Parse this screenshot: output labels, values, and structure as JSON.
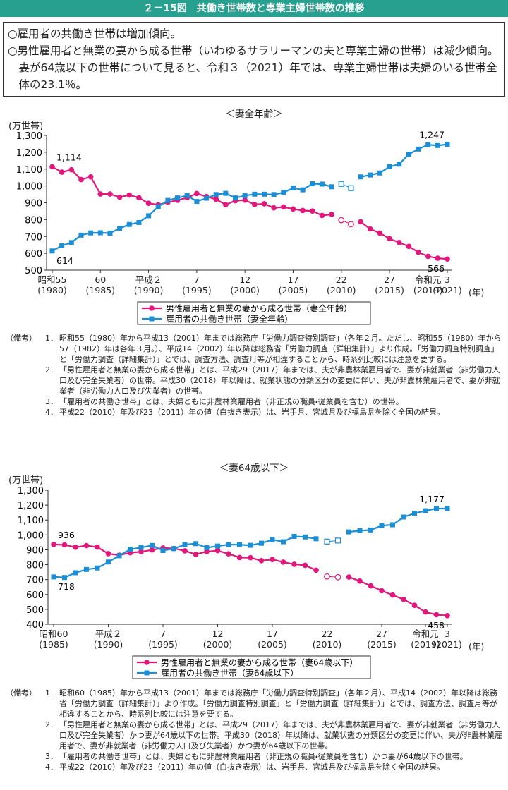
{
  "header": {
    "title": "２－15図　共働き世帯数と専業主婦世帯数の推移"
  },
  "summary": [
    "○雇用者の共働き世帯は増加傾向。",
    "○男性雇用者と無業の妻から成る世帯（いわゆるサラリーマンの夫と専業主婦の世帯）は減少傾向。妻が64歳以下の世帯について見ると、令和３（2021）年では、専業主婦世帯は夫婦のいる世帯全体の23.1％。"
  ],
  "chart_data": [
    {
      "type": "line",
      "subtitle": "＜妻全年齢＞",
      "ylabel": "(万世帯)",
      "xlabel": "(年)",
      "x": [
        1980,
        1981,
        1982,
        1983,
        1984,
        1985,
        1986,
        1987,
        1988,
        1989,
        1990,
        1991,
        1992,
        1993,
        1994,
        1995,
        1996,
        1997,
        1998,
        1999,
        2000,
        2001,
        2002,
        2003,
        2004,
        2005,
        2006,
        2007,
        2008,
        2009,
        2010,
        2011,
        2012,
        2013,
        2014,
        2015,
        2016,
        2017,
        2018,
        2019,
        2020,
        2021
      ],
      "open_x": [
        2010,
        2011
      ],
      "xlim": [
        1980,
        2021
      ],
      "xticks": [
        {
          "value": 1980,
          "label": "昭和55\n(1980)"
        },
        {
          "value": 1985,
          "label": "60\n(1985)"
        },
        {
          "value": 1990,
          "label": "平成２\n(1990)"
        },
        {
          "value": 1995,
          "label": "7\n(1995)"
        },
        {
          "value": 2000,
          "label": "12\n(2000)"
        },
        {
          "value": 2005,
          "label": "17\n(2005)"
        },
        {
          "value": 2010,
          "label": "22\n(2010)"
        },
        {
          "value": 2015,
          "label": "27\n(2015)"
        },
        {
          "value": 2019,
          "label": "令和元\n(2019)"
        },
        {
          "value": 2021,
          "label": "3\n(2021)"
        }
      ],
      "ylim": [
        500,
        1300
      ],
      "yticks": [
        500,
        600,
        700,
        800,
        900,
        {
          "value": 1000,
          "label": "1,000"
        },
        {
          "value": 1100,
          "label": "1,100"
        },
        {
          "value": 1200,
          "label": "1,200"
        },
        {
          "value": 1300,
          "label": "1,300"
        }
      ],
      "grid": false,
      "series": [
        {
          "name": "男性雇用者と無業の妻から成る世帯（妻全年齢）",
          "color": "#e2177b",
          "marker": "circle",
          "values": [
            1114,
            1082,
            1096,
            1038,
            1054,
            952,
            952,
            933,
            946,
            930,
            897,
            888,
            903,
            915,
            930,
            955,
            937,
            921,
            889,
            912,
            916,
            890,
            894,
            870,
            875,
            863,
            854,
            851,
            825,
            831,
            797,
            773,
            787,
            745,
            720,
            687,
            664,
            641,
            606,
            582,
            571,
            566
          ],
          "value_labels": [
            "1,114",
            null,
            null,
            null,
            null,
            null,
            null,
            null,
            null,
            null,
            null,
            null,
            null,
            null,
            null,
            null,
            null,
            null,
            null,
            null,
            null,
            null,
            null,
            null,
            null,
            null,
            null,
            null,
            null,
            null,
            null,
            null,
            null,
            null,
            null,
            null,
            null,
            null,
            null,
            null,
            null,
            "566"
          ]
        },
        {
          "name": "雇用者の共働き世帯（妻全年齢）",
          "color": "#1b8ed6",
          "marker": "square",
          "values": [
            614,
            645,
            664,
            708,
            721,
            722,
            720,
            748,
            771,
            783,
            823,
            877,
            914,
            929,
            943,
            908,
            927,
            949,
            956,
            929,
            942,
            951,
            951,
            949,
            961,
            988,
            977,
            1013,
            1011,
            995,
            1012,
            987,
            1054,
            1065,
            1077,
            1114,
            1129,
            1188,
            1219,
            1245,
            1240,
            1247
          ],
          "value_labels": [
            "614",
            null,
            null,
            null,
            null,
            null,
            null,
            null,
            null,
            null,
            null,
            null,
            null,
            null,
            null,
            null,
            null,
            null,
            null,
            null,
            null,
            null,
            null,
            null,
            null,
            null,
            null,
            null,
            null,
            null,
            null,
            null,
            null,
            null,
            null,
            null,
            null,
            null,
            null,
            null,
            null,
            "1,247"
          ]
        }
      ],
      "notes_label": "（備考）",
      "notes": [
        {
          "number": "1．",
          "text": "昭和55（1980）年から平成13（2001）年までは総務庁「労働力調査特別調査」（各年２月。ただし、昭和55（1980）年から57（1982）年は各年３月。）、平成14（2002）年以降は総務省「労働力調査（詳細集計）」より作成。「労働力調査特別調査」と「労働力調査（詳細集計）」とでは、調査方法、調査月等が相違することから、時系列比較には注意を要する。"
        },
        {
          "number": "2．",
          "text": "「男性雇用者と無業の妻から成る世帯」とは、平成29（2017）年までは、夫が非農林業雇用者で、妻が非就業者（非労働力人口及び完全失業者）の世帯。平成30（2018）年以降は、就業状態の分類区分の変更に伴い、夫が非農林業雇用者で、妻が非就業者（非労働力人口及び失業者）の世帯。"
        },
        {
          "number": "3．",
          "text": "「雇用者の共働き世帯」とは、夫婦ともに非農林業雇用者（非正規の職員・従業員を含む）の世帯。"
        },
        {
          "number": "4．",
          "text": "平成22（2010）年及び23（2011）年の値（白抜き表示）は、岩手県、宮城県及び福島県を除く全国の結果。"
        }
      ]
    },
    {
      "type": "line",
      "subtitle": "＜妻64歳以下＞",
      "ylabel": "(万世帯)",
      "xlabel": "(年)",
      "x": [
        1985,
        1986,
        1987,
        1988,
        1989,
        1990,
        1991,
        1992,
        1993,
        1994,
        1995,
        1996,
        1997,
        1998,
        1999,
        2000,
        2001,
        2002,
        2003,
        2004,
        2005,
        2006,
        2007,
        2008,
        2009,
        2010,
        2011,
        2012,
        2013,
        2014,
        2015,
        2016,
        2017,
        2018,
        2019,
        2020,
        2021
      ],
      "open_x": [
        2010,
        2011
      ],
      "xlim": [
        1985,
        2021
      ],
      "xticks": [
        {
          "value": 1985,
          "label": "昭和60\n(1985)"
        },
        {
          "value": 1990,
          "label": "平成２\n(1990)"
        },
        {
          "value": 1995,
          "label": "7\n(1995)"
        },
        {
          "value": 2000,
          "label": "12\n(2000)"
        },
        {
          "value": 2005,
          "label": "17\n(2005)"
        },
        {
          "value": 2010,
          "label": "22\n(2010)"
        },
        {
          "value": 2015,
          "label": "27\n(2015)"
        },
        {
          "value": 2019,
          "label": "令和元\n(2019)"
        },
        {
          "value": 2021,
          "label": "3\n(2021)"
        }
      ],
      "ylim": [
        400,
        1300
      ],
      "yticks": [
        400,
        500,
        600,
        700,
        800,
        900,
        {
          "value": 1000,
          "label": "1,000"
        },
        {
          "value": 1100,
          "label": "1,100"
        },
        {
          "value": 1200,
          "label": "1,200"
        },
        {
          "value": 1300,
          "label": "1,300"
        }
      ],
      "grid": false,
      "series": [
        {
          "name": "男性雇用者と無業の妻から成る世帯（妻64歳以下）",
          "color": "#e2177b",
          "marker": "circle",
          "values": [
            936,
            933,
            917,
            928,
            918,
            874,
            864,
            880,
            887,
            899,
            912,
            909,
            893,
            869,
            888,
            894,
            873,
            848,
            847,
            827,
            835,
            817,
            803,
            796,
            763,
            721,
            716,
            717,
            690,
            658,
            625,
            596,
            567,
            527,
            482,
            464,
            458
          ],
          "value_labels": [
            "936",
            null,
            null,
            null,
            null,
            null,
            null,
            null,
            null,
            null,
            null,
            null,
            null,
            null,
            null,
            null,
            null,
            null,
            null,
            null,
            null,
            null,
            null,
            null,
            null,
            null,
            null,
            null,
            null,
            null,
            null,
            null,
            null,
            null,
            null,
            null,
            "458"
          ]
        },
        {
          "name": "雇用者の共働き世帯（妻64歳以下）",
          "color": "#1b8ed6",
          "marker": "square",
          "values": [
            718,
            714,
            746,
            768,
            778,
            818,
            860,
            903,
            915,
            929,
            895,
            908,
            935,
            941,
            914,
            925,
            935,
            934,
            930,
            944,
            968,
            954,
            990,
            986,
            974,
            955,
            962,
            1020,
            1028,
            1033,
            1062,
            1068,
            1120,
            1145,
            1162,
            1177,
            1177
          ],
          "value_labels": [
            "718",
            null,
            null,
            null,
            null,
            null,
            null,
            null,
            null,
            null,
            null,
            null,
            null,
            null,
            null,
            null,
            null,
            null,
            null,
            null,
            null,
            null,
            null,
            null,
            null,
            null,
            null,
            null,
            null,
            null,
            null,
            null,
            null,
            null,
            null,
            null,
            "1,177"
          ]
        }
      ],
      "notes_label": "（備考）",
      "notes": [
        {
          "number": "1．",
          "text": "昭和60（1985）年から平成13（2001）年までは総務庁「労働力調査特別調査」（各年２月）、平成14（2002）年以降は総務省「労働力調査（詳細集計）」より作成。「労働力調査特別調査」と「労働力調査（詳細集計）」とでは、調査方法、調査月等が相違することから、時系列比較には注意を要する。"
        },
        {
          "number": "2．",
          "text": "「男性雇用者と無業の妻から成る世帯」とは、平成29（2017）年までは、夫が非農林業雇用者で、妻が非就業者（非労働力人口及び完全失業者）かつ妻が64歳以下の世帯。平成30（2018）年以降は、就業状態の分類区分の変更に伴い、夫が非農林業雇用者で、妻が非就業者（非労働力人口及び失業者）かつ妻が64歳以下の世帯。"
        },
        {
          "number": "3．",
          "text": "「雇用者の共働き世帯」とは、夫婦ともに非農林業雇用者（非正規の職員・従業員を含む）かつ妻が64歳以下の世帯。"
        },
        {
          "number": "4．",
          "text": "平成22（2010）年及び23（2011）年の値（白抜き表示）は、岩手県、宮城県及び福島県を除く全国の結果。"
        }
      ]
    }
  ]
}
